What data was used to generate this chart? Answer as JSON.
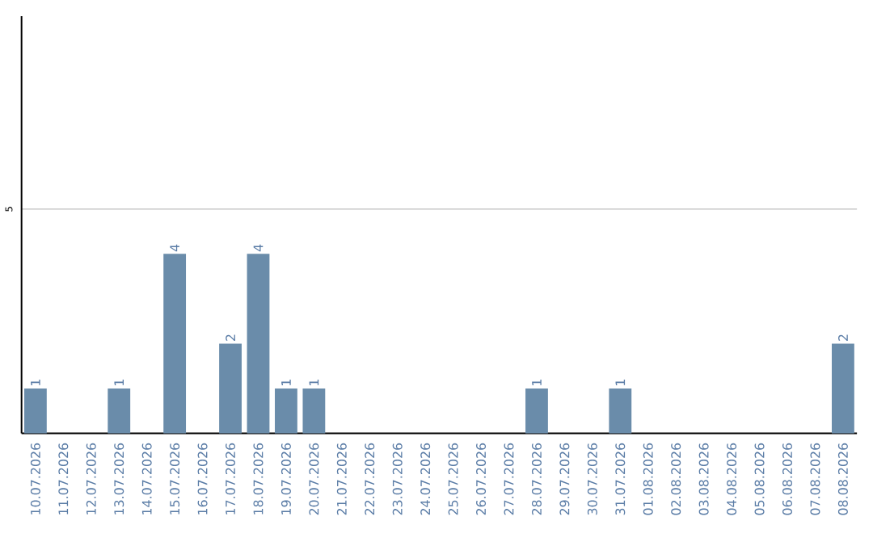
{
  "chart_data": {
    "type": "bar",
    "categories": [
      "10.07.2026",
      "11.07.2026",
      "12.07.2026",
      "13.07.2026",
      "14.07.2026",
      "15.07.2026",
      "16.07.2026",
      "17.07.2026",
      "18.07.2026",
      "19.07.2026",
      "20.07.2026",
      "21.07.2026",
      "22.07.2026",
      "23.07.2026",
      "24.07.2026",
      "25.07.2026",
      "26.07.2026",
      "27.07.2026",
      "28.07.2026",
      "29.07.2026",
      "30.07.2026",
      "31.07.2026",
      "01.08.2026",
      "02.08.2026",
      "03.08.2026",
      "04.08.2026",
      "05.08.2026",
      "06.08.2026",
      "07.08.2026",
      "08.08.2026"
    ],
    "values": [
      1,
      0,
      0,
      1,
      0,
      4,
      0,
      2,
      4,
      1,
      1,
      0,
      0,
      0,
      0,
      0,
      0,
      0,
      1,
      0,
      0,
      1,
      0,
      0,
      0,
      0,
      0,
      0,
      0,
      2
    ],
    "value_labels": [
      "1",
      null,
      null,
      "1",
      null,
      "4",
      null,
      "2",
      "4",
      "1",
      "1",
      null,
      null,
      null,
      null,
      null,
      null,
      null,
      "1",
      null,
      null,
      "1",
      null,
      null,
      null,
      null,
      null,
      null,
      null,
      "2"
    ],
    "color": "#6a8caa",
    "ylim": [
      0,
      9.3
    ],
    "yticks": [
      5
    ],
    "grid": "y"
  }
}
